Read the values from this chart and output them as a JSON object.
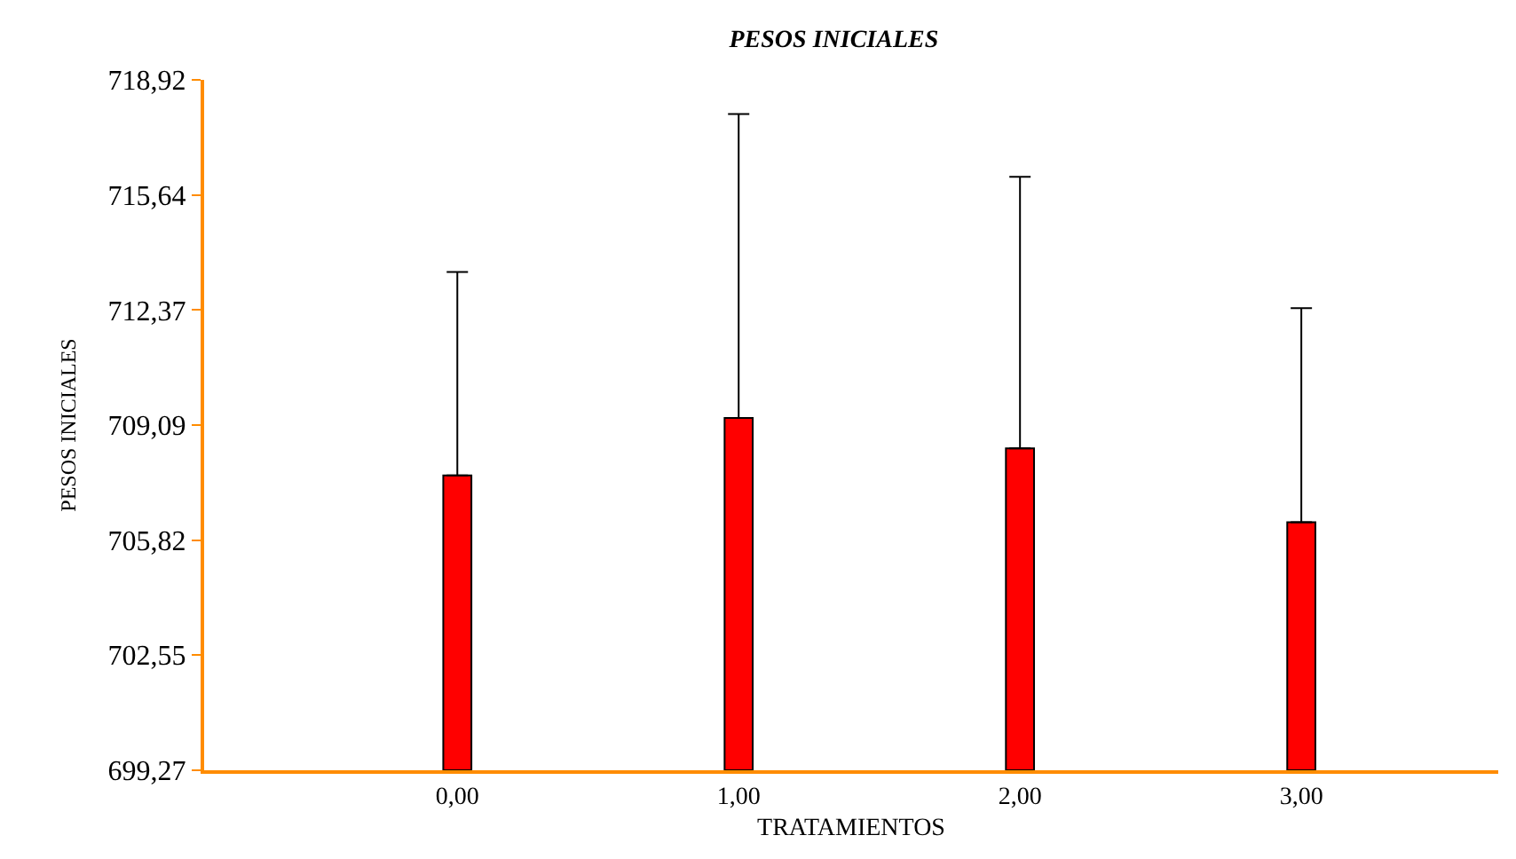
{
  "chart_data": {
    "type": "bar",
    "title": "PESOS INICIALES",
    "xlabel": "TRATAMIENTOS",
    "ylabel": "PESOS INICIALES",
    "categories": [
      "0,00",
      "1,00",
      "2,00",
      "3,00"
    ],
    "values": [
      707.66,
      709.3,
      708.43,
      706.33
    ],
    "errors": [
      [
        707.66,
        713.45
      ],
      [
        709.3,
        717.95
      ],
      [
        708.43,
        716.16
      ],
      [
        706.33,
        712.42
      ]
    ],
    "color": "#ff0000",
    "ylim": [
      699.27,
      718.92
    ],
    "yticks": [
      {
        "value": 699.27,
        "label": "699,27"
      },
      {
        "value": 702.55,
        "label": "702,55"
      },
      {
        "value": 705.82,
        "label": "705,82"
      },
      {
        "value": 709.09,
        "label": "709,09"
      },
      {
        "value": 712.37,
        "label": "712,37"
      },
      {
        "value": 715.64,
        "label": "715,64"
      },
      {
        "value": 718.92,
        "label": "718,92"
      }
    ]
  }
}
